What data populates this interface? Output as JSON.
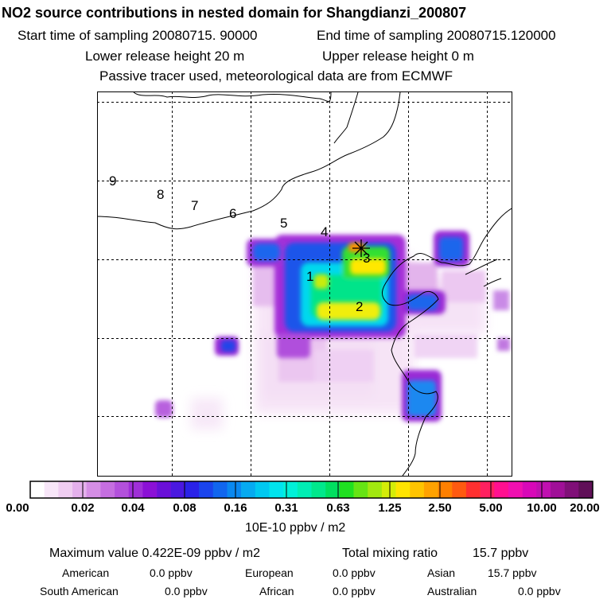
{
  "header": {
    "title": "NO2 source contributions in nested domain for Shangdianzi_200807",
    "start_label": "Start time of sampling 20080715. 90000",
    "end_label": "End time of sampling 20080715.120000",
    "lower_label": "Lower release height   20 m",
    "upper_label": "Upper release height    0 m",
    "note": "Passive tracer used, meteorological data are from ECMWF"
  },
  "map": {
    "trajectory_labels": [
      "9",
      "8",
      "7",
      "6",
      "5",
      "4",
      "3",
      "1",
      "2"
    ],
    "receptor_marker": "star-cross"
  },
  "colorbar": {
    "ticks": [
      "0.00",
      "0.02",
      "0.04",
      "0.08",
      "0.16",
      "0.31",
      "0.63",
      "1.25",
      "2.50",
      "5.00",
      "10.00",
      "20.00"
    ],
    "units": "10E-10 ppbv / m2",
    "colors": [
      "#ffffff",
      "#f7e6f8",
      "#efcdf1",
      "#e4b0ec",
      "#d58ee5",
      "#c56ee0",
      "#b350dc",
      "#9f2fd8",
      "#8b10d6",
      "#6a10d8",
      "#4a18e0",
      "#2a22e8",
      "#1a44ec",
      "#1166ee",
      "#0a88f0",
      "#06aaf0",
      "#00c8f0",
      "#00e4ee",
      "#00f0d8",
      "#00eeb4",
      "#00e88c",
      "#00e060",
      "#20e020",
      "#66e414",
      "#a2e810",
      "#d4ec08",
      "#ffe400",
      "#ffc400",
      "#ffa200",
      "#ff8000",
      "#ff5a10",
      "#ff3030",
      "#ff2060",
      "#ff1090",
      "#f010b0",
      "#d808b8",
      "#c010b0",
      "#a01098",
      "#801078",
      "#601058"
    ]
  },
  "stats": {
    "max_label": "Maximum value  0.422E-09 ppbv / m2",
    "total_label": "Total mixing ratio",
    "total_value": "15.7 ppbv"
  },
  "regions": [
    {
      "name": "American",
      "value": "0.0 ppbv"
    },
    {
      "name": "European",
      "value": "0.0 ppbv"
    },
    {
      "name": "Asian",
      "value": "15.7 ppbv"
    },
    {
      "name": "South American",
      "value": "0.0 ppbv"
    },
    {
      "name": "African",
      "value": "0.0 ppbv"
    },
    {
      "name": "Australian",
      "value": "0.0 ppbv"
    }
  ]
}
